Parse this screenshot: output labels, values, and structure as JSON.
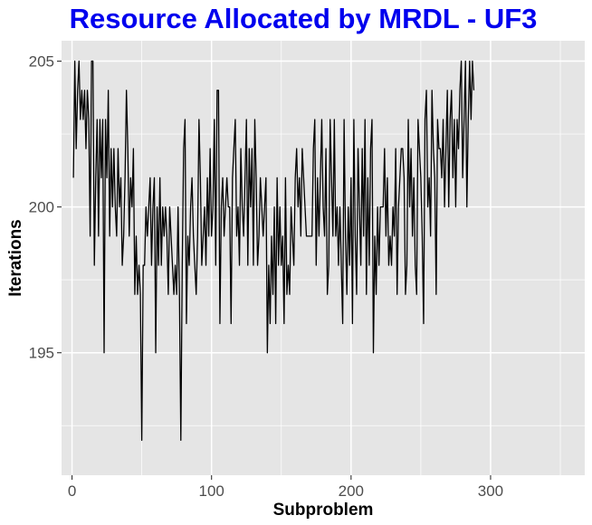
{
  "chart_data": {
    "type": "line",
    "title": "Resource Allocated by MRDL - UF3",
    "xlabel": "Subproblem",
    "ylabel": "Iterations",
    "xlim": [
      -7.5,
      367.5
    ],
    "ylim": [
      190.8,
      205.7
    ],
    "x_ticks": [
      0,
      100,
      200,
      300
    ],
    "y_ticks": [
      195,
      200,
      205
    ],
    "grid": true,
    "colors": {
      "title": "#0000ee",
      "panel": "#e5e5e5",
      "grid_major": "#ffffff",
      "line": "#000000"
    },
    "series": [
      {
        "x_start": 1,
        "x_step": 1,
        "values": [
          201,
          205,
          202,
          204,
          205,
          203,
          204,
          203,
          204,
          202,
          204,
          203,
          199,
          205,
          205,
          198,
          201,
          203,
          199,
          203,
          201,
          203,
          195,
          203,
          201,
          204,
          199,
          202,
          200,
          202,
          200,
          199,
          202,
          200,
          201,
          198,
          199,
          201,
          204,
          202,
          199,
          201,
          200,
          202,
          197,
          199,
          197,
          198,
          197,
          192,
          198,
          198,
          200,
          199,
          200,
          201,
          198,
          200,
          201,
          195,
          200,
          198,
          201,
          198,
          200,
          199,
          200,
          199,
          197,
          200,
          199,
          198,
          197,
          198,
          197,
          200,
          197,
          192,
          198,
          202,
          203,
          196,
          199,
          198,
          200,
          201,
          199,
          198,
          197,
          199,
          203,
          201,
          198,
          199,
          200,
          198,
          201,
          199,
          202,
          199,
          200,
          203,
          198,
          204,
          204,
          196,
          200,
          201,
          199,
          200,
          201,
          200,
          200,
          196,
          201,
          202,
          203,
          199,
          200,
          198,
          202,
          200,
          199,
          201,
          203,
          198,
          202,
          200,
          202,
          198,
          203,
          201,
          198,
          199,
          201,
          200,
          199,
          200,
          201,
          195,
          198,
          196,
          199,
          197,
          200,
          196,
          201,
          198,
          200,
          198,
          199,
          196,
          201,
          197,
          198,
          197,
          200,
          199,
          198,
          201,
          202,
          200,
          201,
          199,
          202,
          201,
          200,
          199,
          199,
          199,
          199,
          199,
          202,
          203,
          198,
          201,
          199,
          201,
          203,
          200,
          199,
          202,
          197,
          198,
          203,
          201,
          199,
          203,
          199,
          200,
          198,
          200,
          198,
          196,
          203,
          199,
          197,
          200,
          198,
          201,
          196,
          203,
          199,
          197,
          202,
          200,
          198,
          202,
          199,
          203,
          197,
          201,
          198,
          202,
          203,
          195,
          199,
          197,
          200,
          198,
          200,
          200,
          200,
          202,
          199,
          201,
          198,
          199,
          198,
          200,
          199,
          202,
          197,
          200,
          201,
          202,
          202,
          201,
          197,
          198,
          203,
          200,
          202,
          199,
          201,
          198,
          197,
          203,
          202,
          201,
          199,
          196,
          203,
          204,
          200,
          201,
          199,
          204,
          202,
          201,
          197,
          203,
          202,
          202,
          201,
          203,
          200,
          202,
          204,
          200,
          203,
          204,
          201,
          203,
          200,
          203,
          202,
          204,
          205,
          201,
          203,
          205,
          200,
          203,
          205,
          203,
          205,
          204
        ]
      }
    ]
  }
}
